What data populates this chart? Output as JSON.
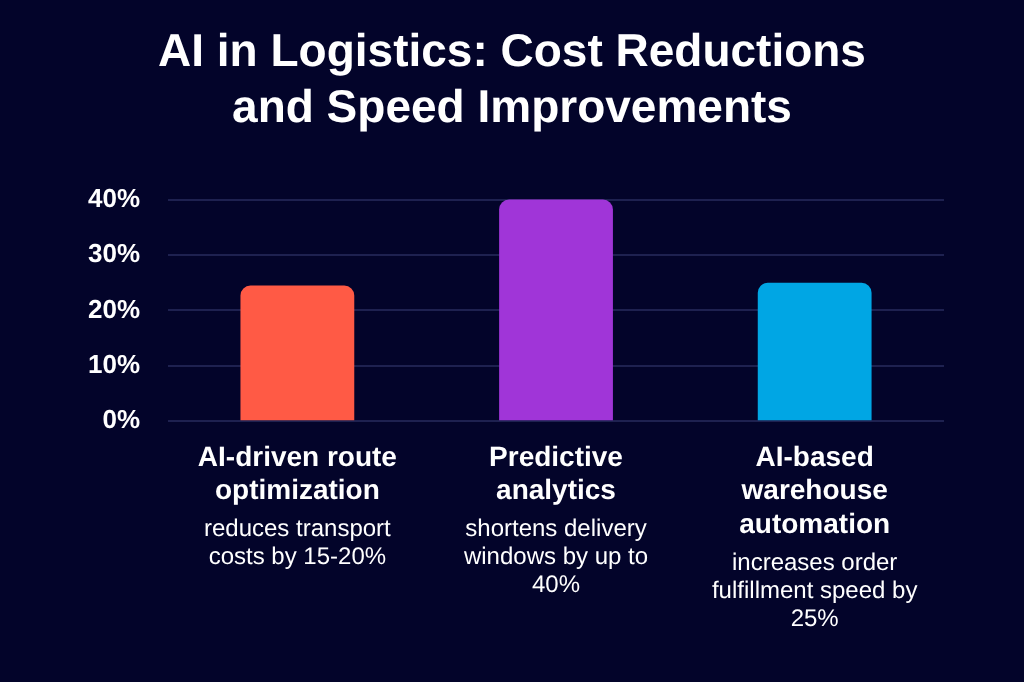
{
  "chart_data": {
    "type": "bar",
    "title": "AI in Logistics: Cost Reductions and Speed Improvements",
    "categories": [
      "AI-driven route optimization",
      "Predictive analytics",
      "AI-based warehouse automation"
    ],
    "values": [
      24.5,
      40,
      25
    ],
    "colors": [
      "#ff5a45",
      "#a035d8",
      "#00a6e4"
    ],
    "annotations": [
      "reduces transport costs by 15-20%",
      "shortens delivery windows by up to 40%",
      "increases order fulfillment speed by 25%"
    ],
    "ylim": [
      0,
      40
    ],
    "yticks": [
      {
        "value": 0,
        "label": "0%"
      },
      {
        "value": 10,
        "label": "10%"
      },
      {
        "value": 20,
        "label": "20%"
      },
      {
        "value": 30,
        "label": "30%"
      },
      {
        "value": 40,
        "label": "40%"
      }
    ],
    "grid": "y",
    "legend": false
  }
}
